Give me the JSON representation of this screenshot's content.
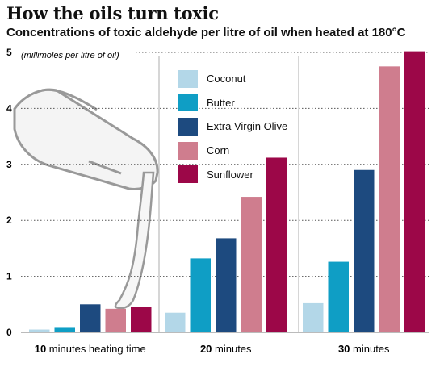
{
  "title": "How the oils turn toxic",
  "subtitle": "Concentrations of toxic aldehyde per litre of oil when heated at 180°C",
  "colors": {
    "Coconut": "#b3d7e8",
    "Butter": "#0f9ec5",
    "Extra Virgin Olive": "#1d4a7f",
    "Corn": "#cf7d8e",
    "Sunflower": "#9c0748",
    "grid": "#555555",
    "divider": "#bbbbbb",
    "illustration": "#999999"
  },
  "icons": [
    "oil-jug-illustration"
  ],
  "chart_data": {
    "type": "bar",
    "title": "How the oils turn toxic",
    "subtitle": "Concentrations of toxic aldehyde per litre of oil when heated at 180°C",
    "ylabel": "(millimoles per litre of oil)",
    "ylim": [
      0,
      5
    ],
    "yticks": [
      0,
      1,
      2,
      3,
      4,
      5
    ],
    "grid": true,
    "legend_position": "top-center",
    "categories": [
      {
        "bold": "10",
        "rest": " minutes heating time"
      },
      {
        "bold": "20",
        "rest": " minutes"
      },
      {
        "bold": "30",
        "rest": " minutes"
      }
    ],
    "series": [
      {
        "name": "Coconut",
        "values": [
          0.05,
          0.35,
          0.52
        ]
      },
      {
        "name": "Butter",
        "values": [
          0.08,
          1.32,
          1.26
        ]
      },
      {
        "name": "Extra Virgin Olive",
        "values": [
          0.5,
          1.68,
          2.9
        ]
      },
      {
        "name": "Corn",
        "values": [
          0.42,
          2.42,
          4.75
        ]
      },
      {
        "name": "Sunflower",
        "values": [
          0.45,
          3.12,
          5.02
        ]
      }
    ]
  }
}
